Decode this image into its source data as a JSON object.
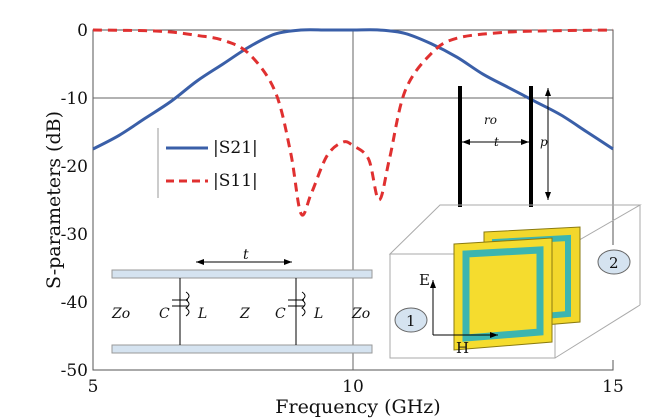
{
  "chart_data": {
    "type": "line",
    "title": "",
    "xlabel": "Frequency (GHz)",
    "ylabel": "S-parameters (dB)",
    "xlim": [
      5,
      15
    ],
    "ylim": [
      -50,
      0
    ],
    "x_ticks": [
      "5",
      "10",
      "15"
    ],
    "y_ticks": [
      "0",
      "-10",
      "-20",
      "-30",
      "-40",
      "-50"
    ],
    "grid": "x=10 and y=-10 lines",
    "legend_position": "center-left",
    "series": [
      {
        "name": "|S21|",
        "color": "#3a5fa8",
        "style": "solid",
        "x": [
          5,
          5.5,
          6,
          6.5,
          7,
          7.5,
          8,
          8.5,
          9,
          9.5,
          10,
          10.5,
          11,
          11.5,
          12,
          12.5,
          13,
          13.5,
          14,
          14.5,
          15
        ],
        "y": [
          -17.5,
          -15.5,
          -13,
          -10.5,
          -7.5,
          -5,
          -2.5,
          -0.6,
          0,
          0,
          0,
          0,
          -0.5,
          -2,
          -4,
          -6.5,
          -8.5,
          -10.5,
          -12.5,
          -15,
          -17.5
        ]
      },
      {
        "name": "|S11|",
        "color": "#e03030",
        "style": "dashed",
        "x": [
          5,
          6,
          6.5,
          7,
          7.5,
          8,
          8.5,
          8.8,
          9,
          9.2,
          9.5,
          9.8,
          10,
          10.3,
          10.5,
          10.7,
          11,
          11.5,
          12,
          13,
          14,
          15
        ],
        "y": [
          0,
          -0.1,
          -0.3,
          -0.8,
          -1.5,
          -3.5,
          -9,
          -18,
          -27,
          -24,
          -18.5,
          -16.5,
          -17,
          -19,
          -25,
          -19,
          -9,
          -3.5,
          -1.2,
          -0.3,
          -0.1,
          0
        ]
      }
    ],
    "legend": [
      "|S21|",
      "|S11|"
    ],
    "annotations": {
      "circuit": {
        "zo_left": "Zo",
        "c1": "C",
        "l1": "L",
        "z_mid": "Z",
        "c2": "C",
        "l2": "L",
        "zo_right": "Zo",
        "spacing": "t"
      },
      "geometry": {
        "ro": "ro",
        "t": "t",
        "p": "p"
      },
      "structure": {
        "e_field": "E",
        "h_field": "H",
        "port1": "1",
        "port2": "2"
      }
    }
  }
}
